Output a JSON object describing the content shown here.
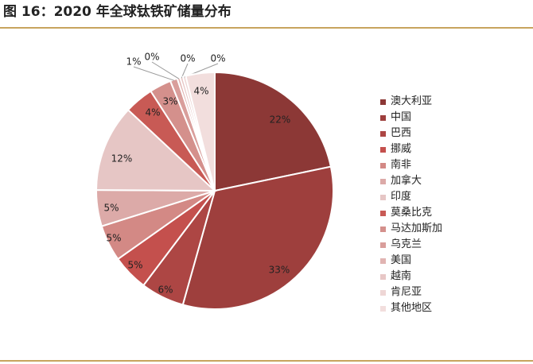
{
  "figure": {
    "title": "图 16：2020 年全球钛铁矿储量分布"
  },
  "chart_data": {
    "type": "pie",
    "title": "",
    "legend_position": "right",
    "slices": [
      {
        "label": "澳大利亚",
        "value": 22,
        "value_label": "22%",
        "color": "#8c3836"
      },
      {
        "label": "中国",
        "value": 33,
        "value_label": "33%",
        "color": "#9e3f3d"
      },
      {
        "label": "巴西",
        "value": 6,
        "value_label": "6%",
        "color": "#ad4644"
      },
      {
        "label": "挪威",
        "value": 5,
        "value_label": "5%",
        "color": "#c4504d"
      },
      {
        "label": "南非",
        "value": 5,
        "value_label": "5%",
        "color": "#d38985"
      },
      {
        "label": "加拿大",
        "value": 5,
        "value_label": "5%",
        "color": "#dcaaa8"
      },
      {
        "label": "印度",
        "value": 12,
        "value_label": "12%",
        "color": "#e6c6c5"
      },
      {
        "label": "莫桑比克",
        "value": 4,
        "value_label": "4%",
        "color": "#c85a55"
      },
      {
        "label": "马达加斯加",
        "value": 3,
        "value_label": "3%",
        "color": "#d4908c"
      },
      {
        "label": "乌克兰",
        "value": 1,
        "value_label": "1%",
        "color": "#d99e9b"
      },
      {
        "label": "美国",
        "value": 0.4,
        "value_label": "0%",
        "color": "#e1b4b2"
      },
      {
        "label": "越南",
        "value": 0.4,
        "value_label": "0%",
        "color": "#e8c7c6"
      },
      {
        "label": "肯尼亚",
        "value": 0.4,
        "value_label": "0%",
        "color": "#eed6d5"
      },
      {
        "label": "其他地区",
        "value": 4,
        "value_label": "4%",
        "color": "#f2dedd"
      }
    ]
  }
}
